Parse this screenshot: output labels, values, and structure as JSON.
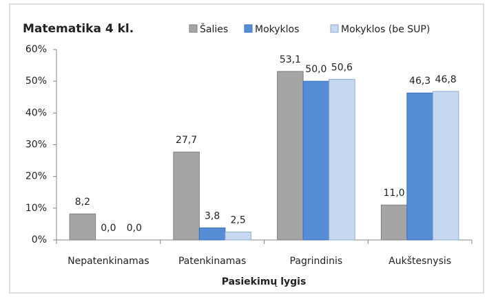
{
  "chart_data": {
    "type": "bar",
    "title": "Matematika 4 kl.",
    "x_label": "Pasiekimų lygis",
    "categories": [
      "Nepatenkinamas",
      "Patenkinamas",
      "Pagrindinis",
      "Aukštesnysis"
    ],
    "series": [
      {
        "name": "Šalies",
        "color": "#a5a5a5",
        "values": [
          8.2,
          27.7,
          53.1,
          11.0
        ],
        "value_labels": [
          "8,2",
          "27,7",
          "53,1",
          "11,0"
        ]
      },
      {
        "name": "Mokyklos",
        "color": "#558ed5",
        "values": [
          0.0,
          3.8,
          50.0,
          46.3
        ],
        "value_labels": [
          "0,0",
          "3,8",
          "50,0",
          "46,3"
        ]
      },
      {
        "name": "Mokyklos (be SUP)",
        "color": "#c6d9f1",
        "values": [
          0.0,
          2.5,
          50.6,
          46.8
        ],
        "value_labels": [
          "0,0",
          "2,5",
          "50,6",
          "46,8"
        ]
      }
    ],
    "ylim": [
      0,
      60
    ],
    "yticks": [
      {
        "value": 0,
        "label": "0%"
      },
      {
        "value": 10,
        "label": "10%"
      },
      {
        "value": 20,
        "label": "20%"
      },
      {
        "value": 30,
        "label": "30%"
      },
      {
        "value": 40,
        "label": "40%"
      },
      {
        "value": 50,
        "label": "50%"
      },
      {
        "value": 60,
        "label": "60%"
      }
    ],
    "grid": false,
    "legend": "top"
  }
}
